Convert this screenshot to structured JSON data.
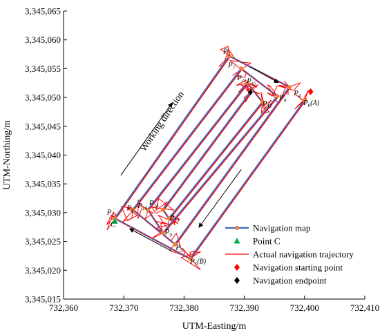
{
  "chart_data": {
    "type": "line",
    "xlabel": "UTM-Easting/m",
    "ylabel": "UTM-Northing/m",
    "xlim": [
      732360,
      732410
    ],
    "ylim": [
      3345015,
      3345065
    ],
    "xticks": [
      732360,
      732370,
      732380,
      732390,
      732400,
      732410
    ],
    "yticks": [
      3345015,
      3345020,
      3345025,
      3345030,
      3345035,
      3345040,
      3345045,
      3345050,
      3345055,
      3345060,
      3345065
    ],
    "xtick_labels": [
      "732,360",
      "732,370",
      "732,380",
      "732,390",
      "732,400",
      "732,410"
    ],
    "ytick_labels": [
      "3,345,015",
      "3,345,020",
      "3,345,025",
      "3,345,030",
      "3,345,035",
      "3,345,040",
      "3,345,045",
      "3,345,050",
      "3,345,055",
      "3,345,060",
      "3,345,065"
    ],
    "legend_position": "bottom-right",
    "grid": false,
    "series": [
      {
        "name": "Navigation map",
        "kind": "line-marker",
        "color": "#4472C4",
        "marker_color": "#ED7D31",
        "points": [
          [
            732400,
            3345049.5
          ],
          [
            732381,
            3345022
          ],
          [
            732368.5,
            3345029
          ],
          [
            732387.5,
            3345057.2
          ],
          [
            732397.5,
            3345051.8
          ],
          [
            732378.5,
            3345024.5
          ],
          [
            732371.5,
            3345030.5
          ],
          [
            732389.5,
            3345055
          ],
          [
            732395.5,
            3345050.2
          ],
          [
            732376.5,
            3345026.5
          ],
          [
            732374,
            3345030.5
          ],
          [
            732390.5,
            3345052.5
          ],
          [
            732393,
            3345049.2
          ],
          [
            732377.5,
            3345029
          ],
          [
            732376.5,
            3345030.5
          ],
          [
            732391,
            3345050.9
          ]
        ]
      },
      {
        "name": "Point C",
        "kind": "marker-triangle",
        "color": "#00B050",
        "points": [
          [
            732368.5,
            3345028.5
          ]
        ]
      },
      {
        "name": "Actual navigation trajectory",
        "kind": "line",
        "color": "#FF0000"
      },
      {
        "name": "Navigation starting point",
        "kind": "marker-diamond",
        "color": "#FF0000",
        "points": [
          [
            732401,
            3345051
          ]
        ]
      },
      {
        "name": "Navigation endpoint",
        "kind": "marker-diamond",
        "color": "#000000",
        "points": [
          [
            732391,
            3345050.9
          ]
        ]
      }
    ],
    "annotations": [
      {
        "text": "P",
        "sub": "1",
        "suffix": "(B)",
        "x": 732381,
        "y": 3345021.2
      },
      {
        "text": "P",
        "sub": "2",
        "suffix": "",
        "x": 732367.2,
        "y": 3345029.7
      },
      {
        "text": "P",
        "sub": "3",
        "suffix": "",
        "x": 732386.5,
        "y": 3345057.6
      },
      {
        "text": "P",
        "sub": "4",
        "suffix": "",
        "x": 732398.2,
        "y": 3345050.4
      },
      {
        "text": "P",
        "sub": "5",
        "suffix": "",
        "x": 732378.6,
        "y": 3345023.6
      },
      {
        "text": "P",
        "sub": "6",
        "suffix": "",
        "x": 732370.5,
        "y": 3345030.4
      },
      {
        "text": "P",
        "sub": "7",
        "suffix": "",
        "x": 732387.3,
        "y": 3345055.2
      },
      {
        "text": "P",
        "sub": "8",
        "suffix": "",
        "x": 732395.8,
        "y": 3345049.6
      },
      {
        "text": "P",
        "sub": "9",
        "suffix": "",
        "x": 732376.8,
        "y": 3345026.2
      },
      {
        "text": "P",
        "sub": "10",
        "suffix": "",
        "x": 732372.3,
        "y": 3345030.8
      },
      {
        "text": "P",
        "sub": "11",
        "suffix": "",
        "x": 732388.8,
        "y": 3345053.0
      },
      {
        "text": "P",
        "sub": "12",
        "suffix": "",
        "x": 732393,
        "y": 3345048.6
      },
      {
        "text": "P",
        "sub": "13",
        "suffix": "",
        "x": 732377.6,
        "y": 3345028.8
      },
      {
        "text": "P",
        "sub": "14",
        "suffix": "",
        "x": 732374.2,
        "y": 3345031.3
      },
      {
        "text": "P",
        "sub": "15",
        "suffix": "",
        "x": 732390.4,
        "y": 3345052.5
      },
      {
        "text": "P",
        "sub": "0",
        "suffix": "(A)",
        "x": 732399.8,
        "y": 3345048.7
      },
      {
        "text": "C",
        "sub": "",
        "suffix": "",
        "x": 732367.8,
        "y": 3345027.6
      }
    ],
    "direction_label": "Working direction"
  }
}
